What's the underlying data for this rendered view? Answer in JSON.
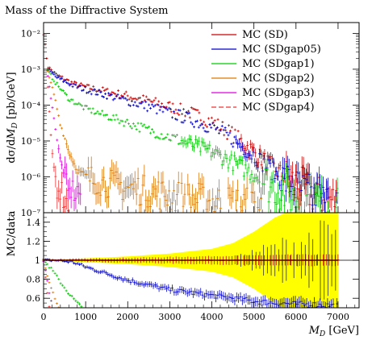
{
  "chart_data": {
    "type": "scatter",
    "title": "Mass of the Diffractive System",
    "main_panel": {
      "ylabel": "dσ/dM_D [pb/GeV]",
      "yscale": "log",
      "ylim": [
        1e-07,
        0.02
      ],
      "yticks": [
        {
          "value": 1e-07,
          "label": "10⁻⁷"
        },
        {
          "value": 1e-06,
          "label": "10⁻⁶"
        },
        {
          "value": 1e-05,
          "label": "10⁻⁵"
        },
        {
          "value": 0.0001,
          "label": "10⁻⁴"
        },
        {
          "value": 0.001,
          "label": "10⁻³"
        },
        {
          "value": 0.01,
          "label": "10⁻²"
        }
      ]
    },
    "ratio_panel": {
      "ylabel": "MC/data",
      "ylim": [
        0.5,
        1.5
      ],
      "yticks": [
        {
          "value": 0.6,
          "label": "0.6"
        },
        {
          "value": 0.8,
          "label": "0.8"
        },
        {
          "value": 1.0,
          "label": "1"
        },
        {
          "value": 1.2,
          "label": "1.2"
        },
        {
          "value": 1.4,
          "label": "1.4"
        }
      ],
      "band_color": "#ffff00",
      "band_halfwidth": [
        [
          0,
          0.005
        ],
        [
          1000,
          0.02
        ],
        [
          2000,
          0.04
        ],
        [
          3000,
          0.07
        ],
        [
          4000,
          0.12
        ],
        [
          4500,
          0.18
        ],
        [
          5000,
          0.3
        ],
        [
          5500,
          0.45
        ],
        [
          6000,
          0.55
        ],
        [
          7000,
          0.6
        ]
      ]
    },
    "xlabel": "M_D [GeV]",
    "xlim": [
      0,
      7500
    ],
    "xticks": [
      0,
      1000,
      2000,
      3000,
      4000,
      5000,
      6000,
      7000
    ],
    "xtick_labels": [
      "0",
      "1000",
      "2000",
      "3000",
      "4000",
      "5000",
      "6000",
      "7000"
    ],
    "legend_position": "top-right",
    "series": [
      {
        "name": "MC (SD)",
        "color": "#cc0000",
        "style": "solid",
        "cutoff": 7000,
        "points": [
          [
            0,
            0.01
          ],
          [
            100,
            0.0012
          ],
          [
            300,
            0.0007
          ],
          [
            700,
            0.0004
          ],
          [
            1000,
            0.00032
          ],
          [
            1500,
            0.00024
          ],
          [
            2000,
            0.00018
          ],
          [
            2500,
            0.00013
          ],
          [
            3000,
            9e-05
          ],
          [
            3500,
            6e-05
          ],
          [
            4000,
            3.5e-05
          ],
          [
            4500,
            1.5e-05
          ],
          [
            5000,
            5e-06
          ],
          [
            5500,
            1.6e-06
          ],
          [
            6000,
            6e-07
          ],
          [
            6500,
            3e-07
          ],
          [
            7000,
            2e-07
          ]
        ],
        "ratio": [
          [
            0,
            1.0
          ],
          [
            7000,
            1.0
          ]
        ]
      },
      {
        "name": "MC (SDgap05)",
        "color": "#0000cc",
        "style": "solid",
        "cutoff": 7000,
        "points": [
          [
            100,
            0.001
          ],
          [
            300,
            0.0006
          ],
          [
            700,
            0.00035
          ],
          [
            1000,
            0.00027
          ],
          [
            1500,
            0.00019
          ],
          [
            2000,
            0.00013
          ],
          [
            2500,
            9e-05
          ],
          [
            3000,
            6e-05
          ],
          [
            3500,
            4e-05
          ],
          [
            4000,
            2.4e-05
          ],
          [
            4500,
            1.1e-05
          ],
          [
            5000,
            4e-06
          ],
          [
            5500,
            1.3e-06
          ],
          [
            6000,
            5e-07
          ],
          [
            6500,
            2.5e-07
          ],
          [
            7000,
            1.5e-07
          ]
        ],
        "ratio": [
          [
            0,
            1.0
          ],
          [
            300,
            1.0
          ],
          [
            700,
            0.98
          ],
          [
            1000,
            0.93
          ],
          [
            1500,
            0.86
          ],
          [
            2000,
            0.79
          ],
          [
            2500,
            0.74
          ],
          [
            3000,
            0.69
          ],
          [
            3500,
            0.66
          ],
          [
            4000,
            0.63
          ],
          [
            4500,
            0.6
          ],
          [
            5000,
            0.57
          ],
          [
            5500,
            0.55
          ],
          [
            6000,
            0.54
          ],
          [
            6500,
            0.53
          ],
          [
            7000,
            0.52
          ]
        ]
      },
      {
        "name": "MC (SDgap1)",
        "color": "#00cc00",
        "style": "solid",
        "cutoff": 7000,
        "points": [
          [
            100,
            0.0009
          ],
          [
            300,
            0.0004
          ],
          [
            600,
            0.00015
          ],
          [
            1000,
            8e-05
          ],
          [
            1500,
            5e-05
          ],
          [
            2000,
            3.2e-05
          ],
          [
            2500,
            2e-05
          ],
          [
            3000,
            1.3e-05
          ],
          [
            3500,
            8e-06
          ],
          [
            4000,
            5e-06
          ],
          [
            4500,
            2.5e-06
          ],
          [
            5000,
            1.2e-06
          ],
          [
            5500,
            5e-07
          ],
          [
            6000,
            2.5e-07
          ],
          [
            7000,
            1.3e-07
          ]
        ],
        "ratio": [
          [
            0,
            1.0
          ],
          [
            200,
            0.9
          ],
          [
            400,
            0.77
          ],
          [
            600,
            0.65
          ],
          [
            800,
            0.55
          ],
          [
            1000,
            0.47
          ]
        ]
      },
      {
        "name": "MC (SDgap2)",
        "color": "#dd7700",
        "style": "solid",
        "cutoff": 5200,
        "points": [
          [
            100,
            0.0008
          ],
          [
            250,
            0.0002
          ],
          [
            400,
            3e-05
          ],
          [
            600,
            5e-06
          ],
          [
            800,
            1.5e-06
          ],
          [
            1200,
            8e-07
          ],
          [
            2000,
            5e-07
          ],
          [
            3000,
            3e-07
          ],
          [
            4000,
            2e-07
          ],
          [
            5000,
            1.5e-07
          ],
          [
            5200,
            1.3e-07
          ]
        ],
        "ratio": [
          [
            0,
            1.0
          ],
          [
            100,
            0.83
          ],
          [
            200,
            0.68
          ],
          [
            300,
            0.55
          ],
          [
            400,
            0.45
          ]
        ]
      },
      {
        "name": "MC (SDgap3)",
        "color": "#dd00dd",
        "style": "solid",
        "cutoff": 900,
        "points": [
          [
            100,
            0.0006
          ],
          [
            200,
            0.0001
          ],
          [
            300,
            1.5e-05
          ],
          [
            400,
            3e-06
          ],
          [
            500,
            1e-06
          ],
          [
            700,
            4e-07
          ],
          [
            900,
            2e-07
          ]
        ],
        "ratio": [
          [
            0,
            1.0
          ],
          [
            100,
            0.75
          ],
          [
            200,
            0.52
          ],
          [
            300,
            0.4
          ]
        ]
      },
      {
        "name": "MC (SDgap4)",
        "color": "#ee3333",
        "style": "dashed",
        "cutoff": 600,
        "points": [
          [
            100,
            0.00035
          ],
          [
            150,
            4e-05
          ],
          [
            200,
            5e-06
          ],
          [
            300,
            6e-07
          ],
          [
            600,
            1.5e-07
          ]
        ],
        "ratio": [
          [
            0,
            1.0
          ],
          [
            80,
            0.7
          ],
          [
            150,
            0.45
          ]
        ]
      }
    ]
  }
}
